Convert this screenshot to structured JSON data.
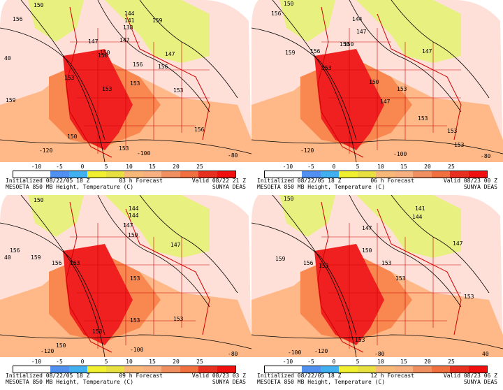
{
  "colors": {
    "bg_outside": "#ffffff",
    "t_lt_neg10": "#ffffff",
    "t_pale_pink": "#ffe0d8",
    "t_salmon": "#ffb888",
    "t_orange": "#f88850",
    "t_red": "#f02020",
    "t_yellow": "#f0f030",
    "t_yellow_light": "#e8f080",
    "borders": "#d00000",
    "contours": "#000000"
  },
  "colorbar": {
    "ticks": [
      "-10",
      "-5",
      "0",
      "5",
      "10",
      "15",
      "20",
      "25"
    ],
    "swatches": [
      "#ffffff",
      "#ffffff",
      "#5090f0",
      "#40b0f0",
      "#f0f030",
      "#e8e040",
      "#f8b878",
      "#f8b080",
      "#f09060",
      "#f07040",
      "#e83020",
      "#f01010"
    ]
  },
  "panels": [
    {
      "init": "Initialized 08/22/05 18 Z",
      "forecast": "03 h Forecast",
      "valid": "Valid 08/22 21 Z",
      "model": "MESOETA 850 MB Height, Temperature (C)",
      "credit": "SUNYA DEAS",
      "contour_labels": [
        "150",
        "156",
        "159",
        "153",
        "147",
        "144",
        "141",
        "138",
        "150",
        "159",
        "147",
        "153",
        "153",
        "156",
        "150",
        "156",
        "153",
        "-120",
        "-100",
        "-80",
        "150",
        "40",
        "147",
        "153",
        "156"
      ]
    },
    {
      "init": "Initialized 08/22/05 18 Z",
      "forecast": "06 h Forecast",
      "valid": "Valid 08/23 00 Z",
      "model": "MESOETA 850 MB Height, Temperature (C)",
      "credit": "SUNYA DEAS",
      "contour_labels": [
        "150",
        "156",
        "159",
        "156",
        "144",
        "147",
        "150",
        "153",
        "150",
        "147",
        "153",
        "153",
        "153",
        "153",
        "-120",
        "-100",
        "-80",
        "150",
        "147"
      ]
    },
    {
      "init": "Initialized 08/22/05 18 Z",
      "forecast": "09 h Forecast",
      "valid": "Valid 08/23 03 Z",
      "model": "MESOETA 850 MB Height, Temperature (C)",
      "credit": "SUNYA DEAS",
      "contour_labels": [
        "150",
        "156",
        "159",
        "156",
        "153",
        "144",
        "144",
        "147",
        "150",
        "147",
        "153",
        "153",
        "153",
        "153",
        "150",
        "-120",
        "-100",
        "-80",
        "40"
      ]
    },
    {
      "init": "Initialized 08/22/05 18 Z",
      "forecast": "12 h Forecast",
      "valid": "Valid 08/23 06 Z",
      "model": "MESOETA 850 MB Height, Temperature (C)",
      "credit": "SUNYA DEAS",
      "contour_labels": [
        "150",
        "156",
        "159",
        "153",
        "141",
        "144",
        "147",
        "150",
        "147",
        "153",
        "153",
        "153",
        "153",
        "-120",
        "-100",
        "-80",
        "40"
      ]
    }
  ]
}
